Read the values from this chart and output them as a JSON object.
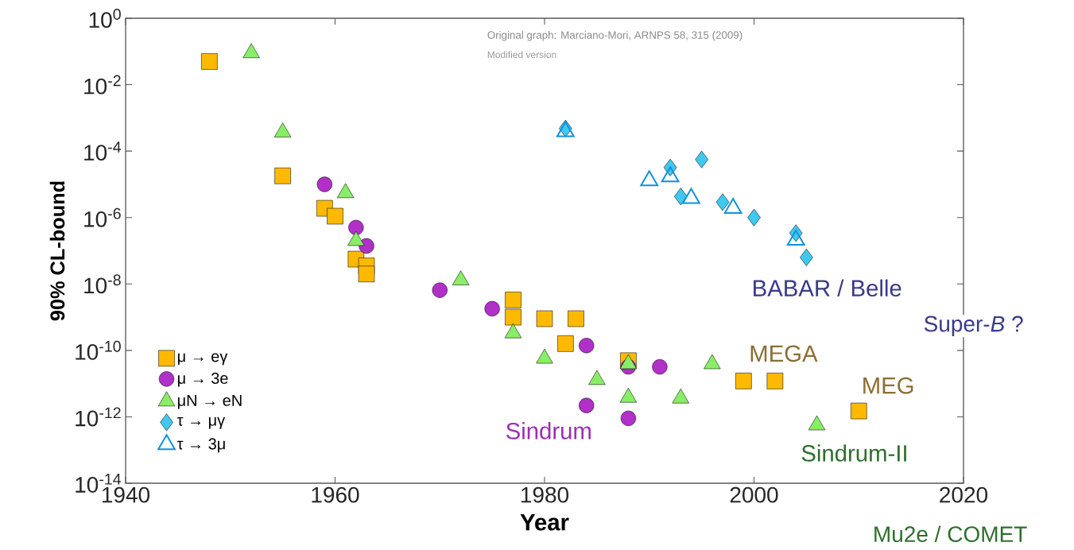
{
  "chart_data": {
    "type": "scatter",
    "xlabel": "Year",
    "ylabel": "90% CL-bound",
    "xlim": [
      1940,
      2020
    ],
    "xticks": [
      1940,
      1960,
      1980,
      2000,
      2020
    ],
    "ylim": [
      1e-14,
      1
    ],
    "yticks": [
      {
        "value": 1e-14,
        "label": "10$^{-14}$"
      },
      {
        "value": 1e-12,
        "label": "10$^{-12}$"
      },
      {
        "value": 1e-10,
        "label": "10$^{-10}$"
      },
      {
        "value": 1e-08,
        "label": "10$^{-8}$"
      },
      {
        "value": 1e-06,
        "label": "10$^{-6}$"
      },
      {
        "value": 0.0001,
        "label": "10$^{-4}$"
      },
      {
        "value": 0.01,
        "label": "10$^{-2}$"
      },
      {
        "value": 1,
        "label": "10$^{0}$"
      }
    ],
    "log": "y",
    "grid": false,
    "legend": "bottom left",
    "series": [
      {
        "name": "μ → eγ",
        "color": "#ffb900",
        "marker": "square",
        "x": [
          1948,
          1955,
          1959,
          1960,
          1962,
          1963,
          1963,
          1977,
          1977,
          1980,
          1983,
          1982,
          1988,
          1999,
          2002,
          2010
        ],
        "values": [
          0.05,
          1.8e-05,
          1.9e-06,
          1.1e-06,
          5.6e-08,
          3.5e-08,
          2e-08,
          3.3e-09,
          1e-09,
          9e-10,
          9e-10,
          1.6e-10,
          4.9e-11,
          1.2e-11,
          1.2e-11,
          1.5e-12
        ]
      },
      {
        "name": "μ → 3e",
        "color": "#b030c8",
        "marker": "circle",
        "x": [
          1959,
          1962,
          1963,
          1970,
          1975,
          1984,
          1988,
          1991,
          1984,
          1988
        ],
        "values": [
          1e-05,
          5e-07,
          1.4e-07,
          6.5e-09,
          1.8e-09,
          1.4e-10,
          3.2e-11,
          3.2e-11,
          2.2e-12,
          9e-13
        ]
      },
      {
        "name": "μN → eN",
        "color": "#88ee66",
        "marker": "triangle",
        "x": [
          1952,
          1955,
          1961,
          1962,
          1972,
          1977,
          1980,
          1988,
          1985,
          1988,
          1993,
          1996,
          2006
        ],
        "values": [
          0.09,
          0.00037,
          5.5e-06,
          2e-07,
          1.3e-08,
          3.3e-10,
          5.7e-11,
          3.9e-11,
          1.3e-11,
          3.8e-12,
          3.6e-12,
          3.9e-11,
          5.6e-13
        ]
      },
      {
        "name": "τ → μγ",
        "color": "#40c8f0",
        "marker": "diamond",
        "x": [
          1982,
          1992,
          1995,
          1993,
          1997,
          2000,
          2004,
          2005
        ],
        "values": [
          0.00048,
          3.2e-05,
          5.6e-05,
          4.3e-06,
          2.9e-06,
          1e-06,
          3.4e-07,
          6.3e-08
        ]
      },
      {
        "name": "τ → 3μ",
        "color": "#1090e0",
        "marker": "triangle",
        "x": [
          1982,
          1990,
          1992,
          1994,
          1998,
          2004
        ],
        "values": [
          0.00039,
          1.3e-05,
          1.7e-05,
          3.8e-06,
          1.9e-06,
          2.1e-07
        ]
      }
    ],
    "annotations": [
      "Original graph: Marciano-Mori, ARNPS 58, 315 (2009)",
      "Modified version",
      "BABAR / Belle",
      "Super-*B* ?",
      "MEGA",
      "MEG",
      "Sindrum",
      "Sindrum-II",
      "Mu2e / COMET"
    ]
  }
}
